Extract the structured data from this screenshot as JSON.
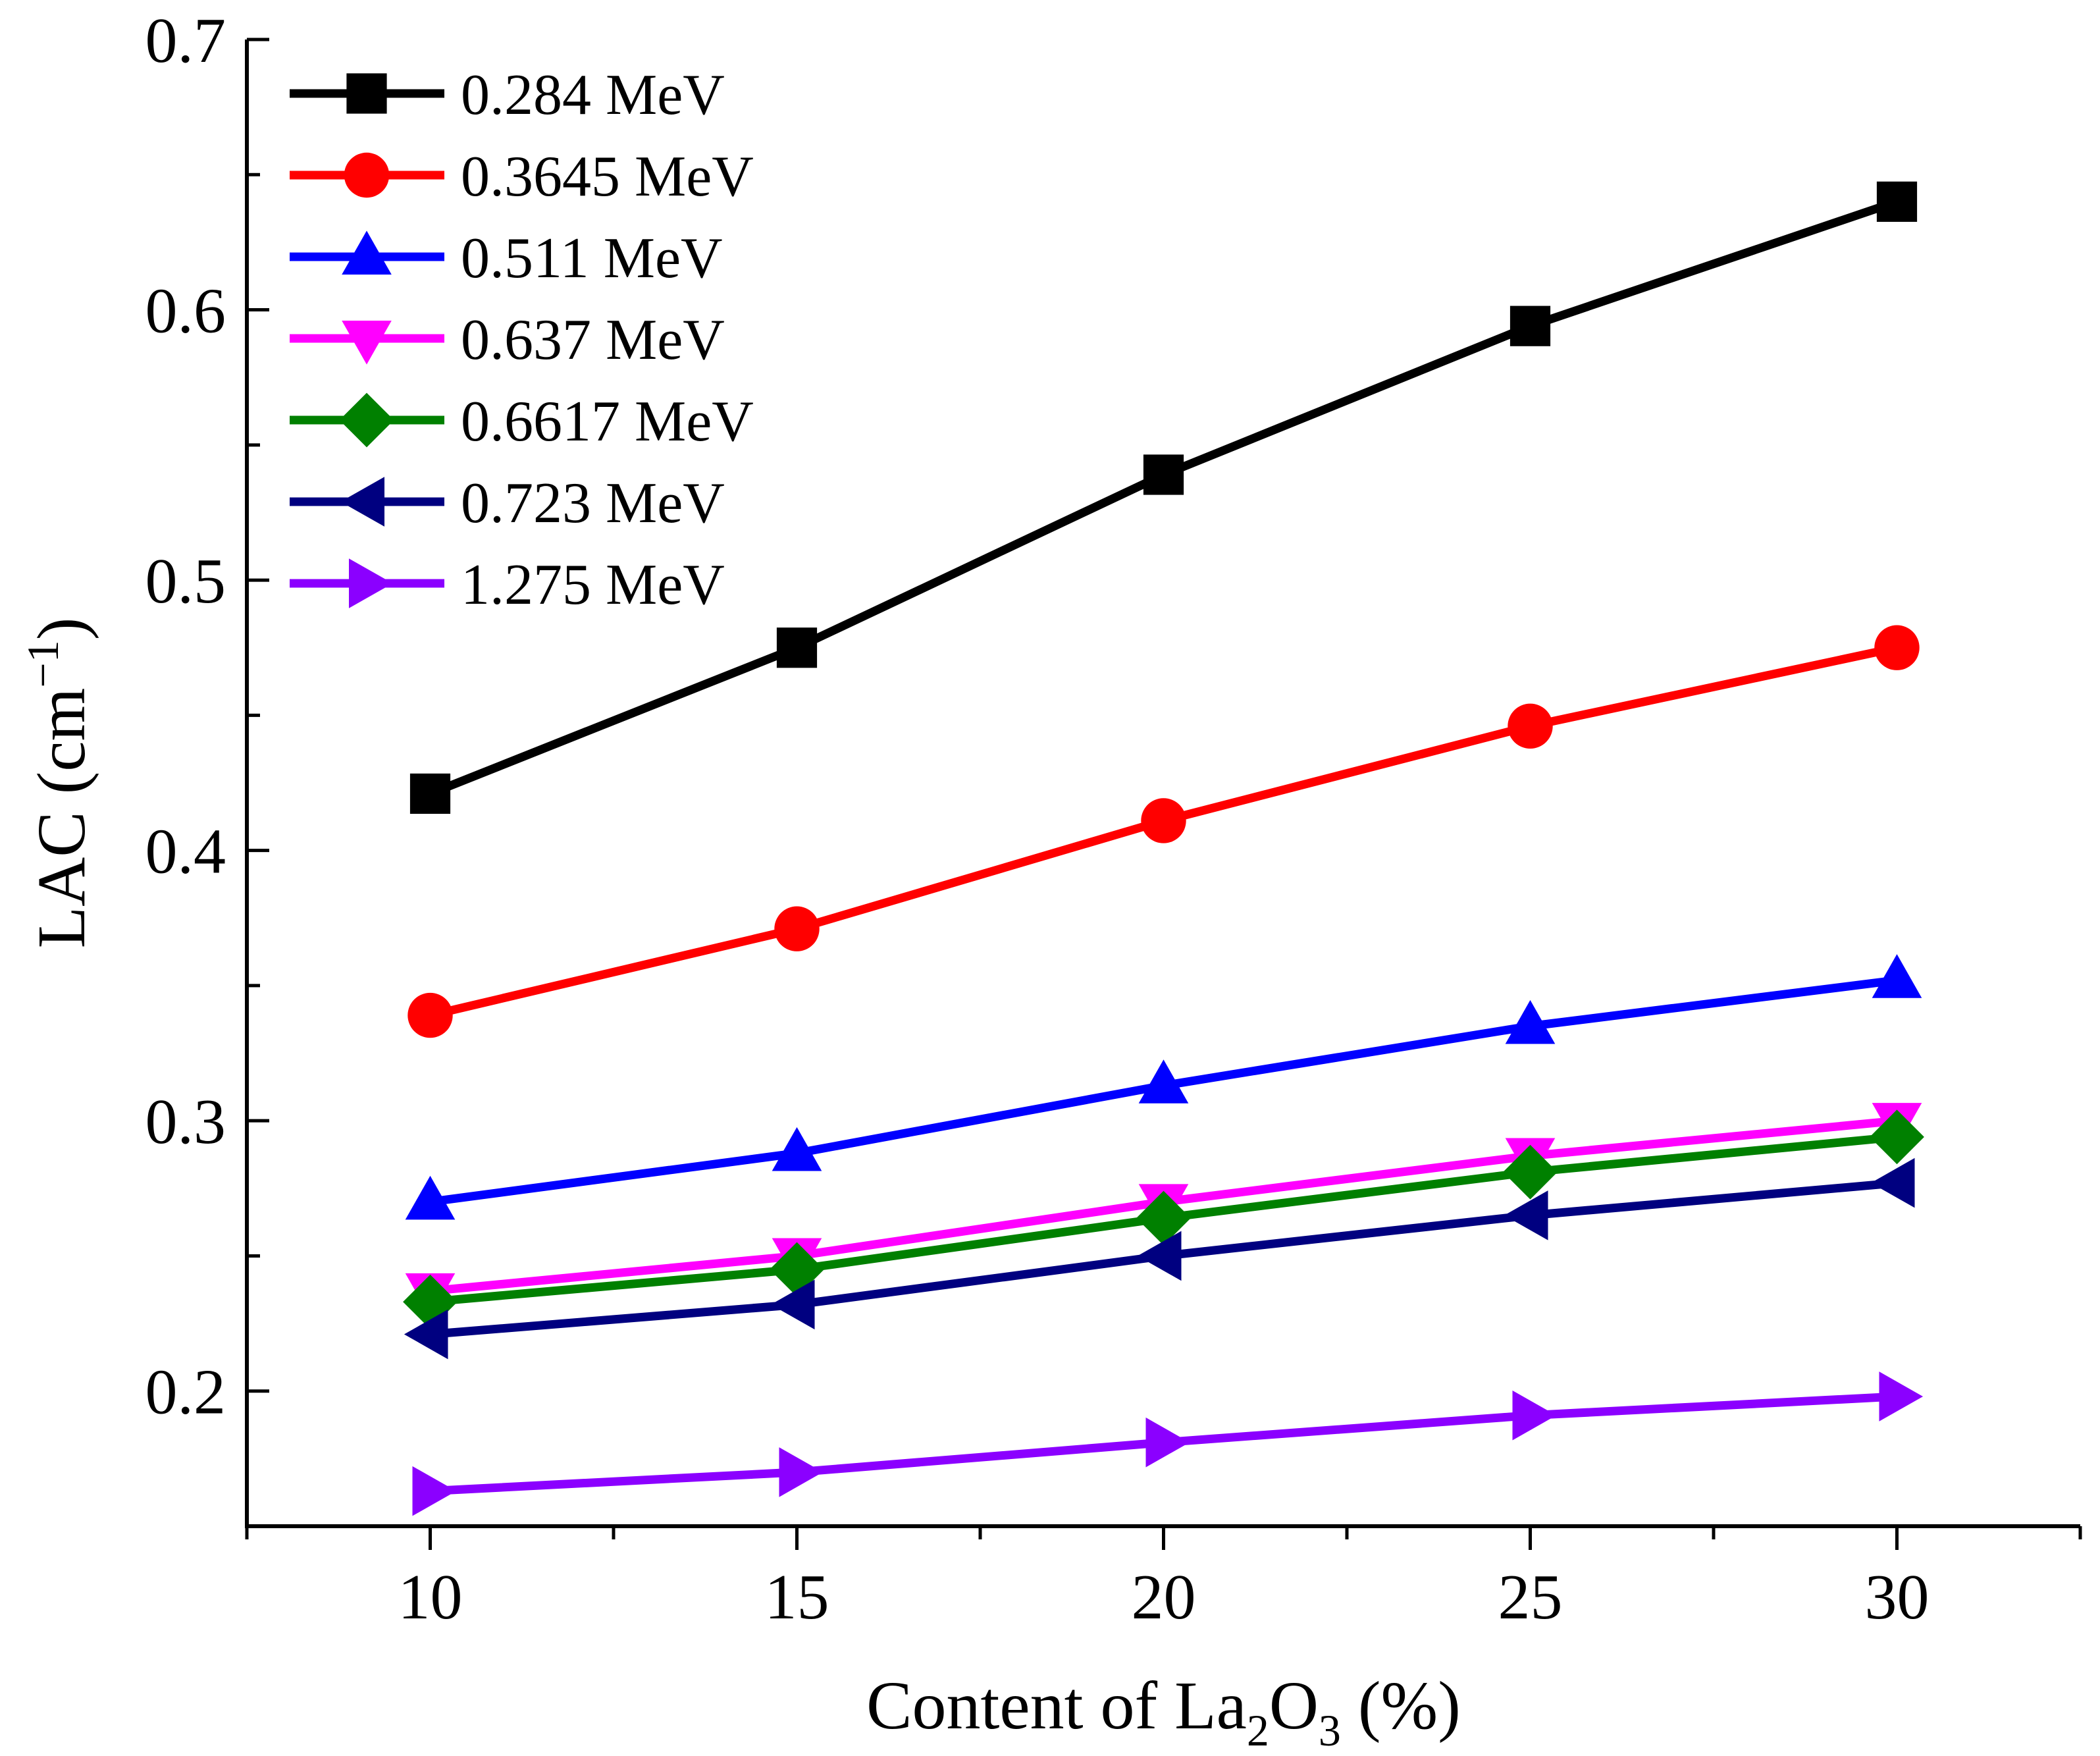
{
  "chart_data": {
    "type": "line",
    "title": "",
    "xlabel": "Content of La2O3 (%)",
    "ylabel": "LAC (cm-1)",
    "xlabel_parts": {
      "pre": "Content of La",
      "sub1": "2",
      "mid": "O",
      "sub2": "3",
      "post": " (%)"
    },
    "ylabel_parts": {
      "pre": "LAC (cm",
      "sup": "−1",
      "post": ")"
    },
    "x": [
      10,
      15,
      20,
      25,
      30
    ],
    "xlim": [
      7.5,
      32.5
    ],
    "ylim": [
      0.15,
      0.7
    ],
    "xticks": [
      10,
      15,
      20,
      25,
      30
    ],
    "yticks": [
      0.2,
      0.3,
      0.4,
      0.5,
      0.6,
      0.7
    ],
    "xtick_labels": [
      "10",
      "15",
      "20",
      "25",
      "30"
    ],
    "ytick_labels": [
      "0.2",
      "0.3",
      "0.4",
      "0.5",
      "0.6",
      "0.7"
    ],
    "grid": false,
    "legend_position": "top-left",
    "series": [
      {
        "name": "0.284 MeV",
        "color": "#000000",
        "marker": "square",
        "values": [
          0.421,
          0.475,
          0.539,
          0.594,
          0.64
        ]
      },
      {
        "name": "0.3645 MeV",
        "color": "#ff0000",
        "marker": "circle",
        "values": [
          0.339,
          0.371,
          0.411,
          0.446,
          0.475
        ]
      },
      {
        "name": "0.511 MeV",
        "color": "#0000ff",
        "marker": "triangle-up",
        "values": [
          0.27,
          0.288,
          0.313,
          0.335,
          0.352
        ]
      },
      {
        "name": "0.637 MeV",
        "color": "#ff00ff",
        "marker": "triangle-down",
        "values": [
          0.237,
          0.25,
          0.27,
          0.287,
          0.3
        ]
      },
      {
        "name": "0.6617 MeV",
        "color": "#008000",
        "marker": "diamond",
        "values": [
          0.233,
          0.245,
          0.264,
          0.281,
          0.294
        ]
      },
      {
        "name": "0.723 MeV",
        "color": "#000080",
        "marker": "triangle-left",
        "values": [
          0.221,
          0.232,
          0.25,
          0.265,
          0.277
        ]
      },
      {
        "name": "1.275 MeV",
        "color": "#8b00ff",
        "marker": "triangle-right",
        "values": [
          0.163,
          0.17,
          0.181,
          0.191,
          0.198
        ]
      }
    ]
  }
}
